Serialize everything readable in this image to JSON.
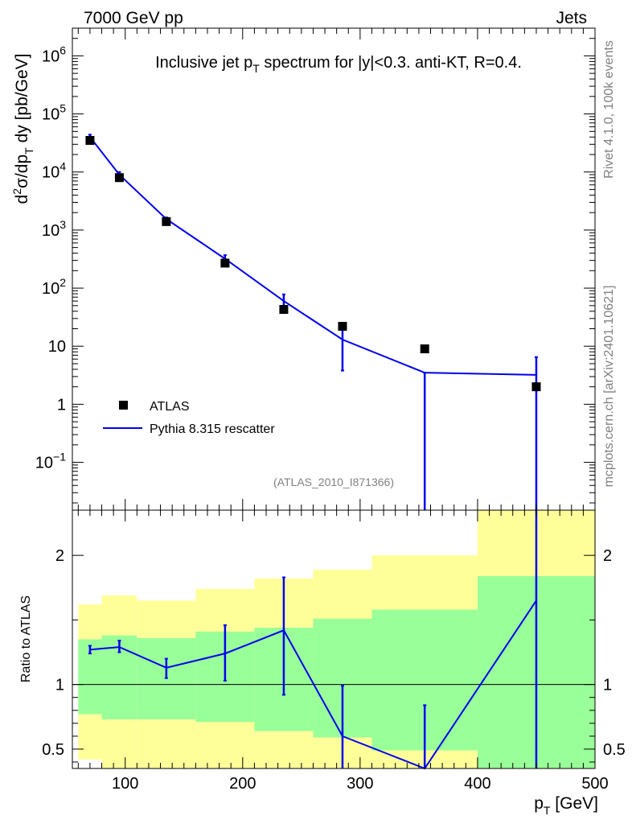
{
  "header": {
    "left": "7000 GeV pp",
    "right": "Jets"
  },
  "side_labels": {
    "rivet": "Rivet 4.1.0,  100k events",
    "mcplots": "mcplots.cern.ch [arXiv:2401.10621]"
  },
  "colors": {
    "mc": "#0000ee",
    "data": "#000000",
    "band_inner": "#99ff99",
    "band_outer": "#ffff99"
  },
  "chart_data": [
    {
      "type": "scatter",
      "panel": "main",
      "title": "Inclusive jet p_T spectrum for |y|<0.3.  anti-KT, R=0.4.",
      "title_parts": {
        "pre": "Inclusive jet p",
        "sub": "T",
        "post": " spectrum for |y|<0.3.  anti-KT, R=0.4."
      },
      "analysis_label": "(ATLAS_2010_I871366)",
      "ylabel": "d²σ/dp_T dy [pb/GeV]",
      "yscale": "log",
      "ylim": [
        0.015,
        3000000
      ],
      "xlim": [
        55,
        500
      ],
      "ytick_labels": [
        {
          "value": 1000000,
          "base": "10",
          "exp": "6"
        },
        {
          "value": 100000,
          "base": "10",
          "exp": "5"
        },
        {
          "value": 10000,
          "base": "10",
          "exp": "4"
        },
        {
          "value": 1000,
          "base": "10",
          "exp": "3"
        },
        {
          "value": 100,
          "base": "10",
          "exp": "2"
        },
        {
          "value": 10,
          "base": "10",
          "exp": ""
        },
        {
          "value": 1,
          "base": "1",
          "exp": ""
        },
        {
          "value": 0.1,
          "base": "10",
          "exp": "−1"
        }
      ],
      "legend": {
        "placement": "lower-left",
        "data_label": "ATLAS",
        "mc_label": "Pythia 8.315 rescatter"
      },
      "series": [
        {
          "name": "ATLAS",
          "kind": "markers",
          "x": [
            70,
            95,
            135,
            185,
            235,
            285,
            355,
            450
          ],
          "y": [
            35000,
            8000,
            1400,
            270,
            43,
            22,
            9,
            2
          ]
        },
        {
          "name": "Pythia 8.315 rescatter",
          "kind": "line",
          "x": [
            70,
            95,
            135,
            185,
            235,
            285,
            355,
            450
          ],
          "y": [
            40000,
            9000,
            1550,
            320,
            60,
            13,
            3.5,
            3.2
          ],
          "err_low": [
            36000,
            8200,
            1450,
            270,
            45,
            3.8,
            0.0001,
            0.0001
          ],
          "err_high": [
            44000,
            10000,
            1650,
            370,
            78,
            21,
            3.5,
            6.5
          ]
        }
      ]
    },
    {
      "type": "line",
      "panel": "ratio",
      "ylabel": "Ratio to ATLAS",
      "xlabel": "p_T [GeV]",
      "xlabel_parts": {
        "pre": "p",
        "sub": "T",
        "post": " [GeV]"
      },
      "xlim": [
        55,
        500
      ],
      "ylim": [
        0.35,
        2.35
      ],
      "x_ticks": [
        100,
        200,
        300,
        400,
        500
      ],
      "x_tick_labels": [
        "100",
        "200",
        "300",
        "400",
        "500"
      ],
      "y_ticks": [
        0.5,
        1,
        2
      ],
      "y_tick_labels": [
        "0.5",
        "1",
        "2"
      ],
      "reference_line": 1,
      "bands": {
        "edges": [
          60,
          80,
          110,
          160,
          210,
          260,
          310,
          400,
          500
        ],
        "inner_low": [
          0.77,
          0.73,
          0.73,
          0.71,
          0.64,
          0.59,
          0.49,
          0.35
        ],
        "inner_high": [
          1.35,
          1.38,
          1.36,
          1.41,
          1.44,
          1.51,
          1.58,
          1.84
        ],
        "outer_low": [
          0.42,
          0.35,
          0.35,
          0.35,
          0.35,
          0.35,
          0.35,
          0.35
        ],
        "outer_high": [
          1.62,
          1.69,
          1.65,
          1.74,
          1.82,
          1.89,
          2.0,
          2.35
        ]
      },
      "series": [
        {
          "name": "Pythia 8.315 rescatter",
          "x": [
            70,
            95,
            135,
            185,
            235,
            285,
            355,
            450
          ],
          "y": [
            1.27,
            1.29,
            1.13,
            1.24,
            1.42,
            0.6,
            0.34,
            1.65
          ],
          "err_low": [
            1.24,
            1.25,
            1.05,
            1.03,
            0.92,
            0.3,
            0.3,
            0.3
          ],
          "err_high": [
            1.3,
            1.34,
            1.2,
            1.46,
            1.83,
            0.99,
            0.84,
            2.4
          ]
        }
      ]
    }
  ]
}
